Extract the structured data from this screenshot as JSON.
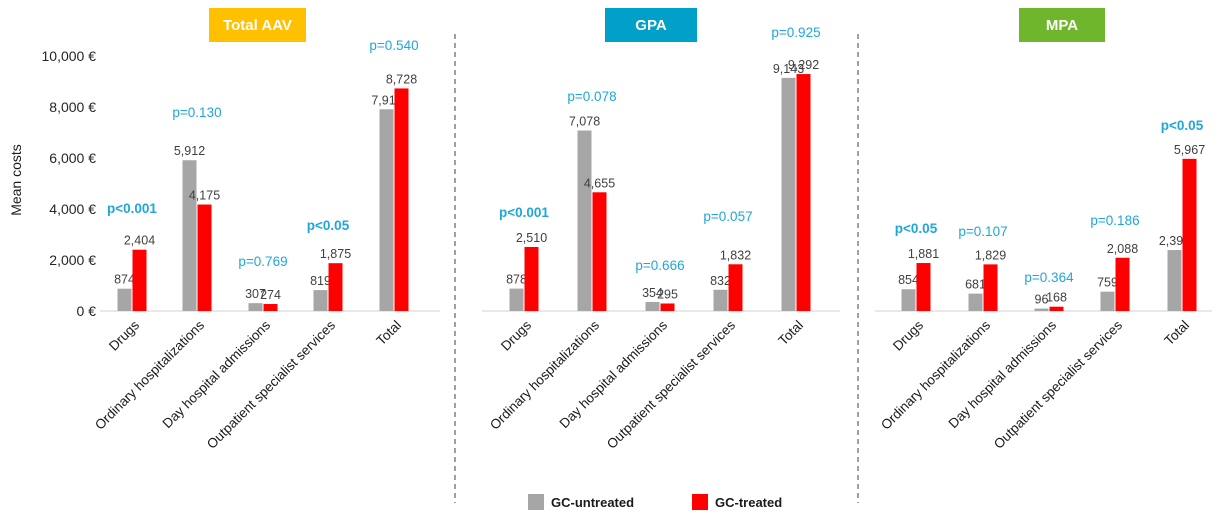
{
  "chart_data": {
    "type": "bar",
    "ylabel": "Mean costs",
    "ylim": [
      0,
      10000
    ],
    "y_ticks": [
      "0 €",
      "2,000 €",
      "4,000 €",
      "6,000 €",
      "8,000 €",
      "10,000 €"
    ],
    "y_tick_values": [
      0,
      2000,
      4000,
      6000,
      8000,
      10000
    ],
    "legend": [
      {
        "name": "GC-untreated",
        "color": "#a6a6a6"
      },
      {
        "name": "GC-treated",
        "color": "#ff0000"
      }
    ],
    "legend_position": "bottom-center",
    "categories": [
      "Drugs",
      "Ordinary hospitalizations",
      "Day hospital admissions",
      "Outpatient specialist services",
      "Total"
    ],
    "p_value_color": "#1fa7d9",
    "panels": [
      {
        "title": "Total AAV",
        "title_color": "#ffc000",
        "series": [
          {
            "name": "GC-untreated",
            "values": [
              874,
              5912,
              307,
              819,
              7911
            ],
            "labels": [
              "874",
              "5,912",
              "307",
              "819",
              "7,911"
            ]
          },
          {
            "name": "GC-treated",
            "values": [
              2404,
              4175,
              274,
              1875,
              8728
            ],
            "labels": [
              "2,404",
              "4,175",
              "274",
              "1,875",
              "8,728"
            ]
          }
        ],
        "p_values": [
          {
            "text": "p<0.001",
            "bold": true
          },
          {
            "text": "p=0.130",
            "bold": false
          },
          {
            "text": "p=0.769",
            "bold": false
          },
          {
            "text": "p<0.05",
            "bold": true
          },
          {
            "text": "p=0.540",
            "bold": false
          }
        ]
      },
      {
        "title": "GPA",
        "title_color": "#00a0c8",
        "series": [
          {
            "name": "GC-untreated",
            "values": [
              878,
              7078,
              354,
              832,
              9143
            ],
            "labels": [
              "878",
              "7,078",
              "354",
              "832",
              "9,143"
            ]
          },
          {
            "name": "GC-treated",
            "values": [
              2510,
              4655,
              295,
              1832,
              9292
            ],
            "labels": [
              "2,510",
              "4,655",
              "295",
              "1,832",
              "9,292"
            ]
          }
        ],
        "p_values": [
          {
            "text": "p<0.001",
            "bold": true
          },
          {
            "text": "p=0.078",
            "bold": false
          },
          {
            "text": "p=0.666",
            "bold": false
          },
          {
            "text": "p=0.057",
            "bold": false
          },
          {
            "text": "p=0.925",
            "bold": false
          }
        ]
      },
      {
        "title": "MPA",
        "title_color": "#70b62c",
        "series": [
          {
            "name": "GC-untreated",
            "values": [
              854,
              681,
              96,
              759,
              2390
            ],
            "labels": [
              "854",
              "681",
              "96",
              "759",
              "2,390"
            ]
          },
          {
            "name": "GC-treated",
            "values": [
              1881,
              1829,
              168,
              2088,
              5967
            ],
            "labels": [
              "1,881",
              "1,829",
              "168",
              "2,088",
              "5,967"
            ]
          }
        ],
        "p_values": [
          {
            "text": "p<0.05",
            "bold": true
          },
          {
            "text": "p=0.107",
            "bold": false
          },
          {
            "text": "p=0.364",
            "bold": false
          },
          {
            "text": "p=0.186",
            "bold": false
          },
          {
            "text": "p<0.05",
            "bold": true
          }
        ]
      }
    ]
  }
}
